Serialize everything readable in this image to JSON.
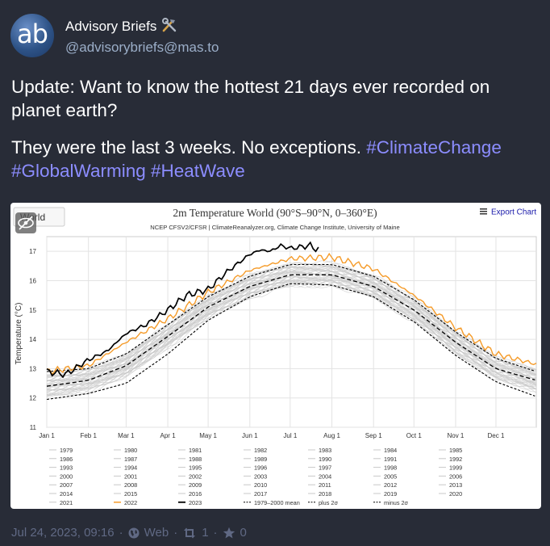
{
  "post": {
    "author": {
      "display_name": "Advisory Briefs",
      "handle": "@advisorybriefs@mas.to",
      "avatar_text": "ab",
      "name_icon": "hammer-and-wrench-icon"
    },
    "text_line1": "Update: Want to know the hottest 21 days ever recorded on planet earth?",
    "text_line2_plain": "They were the last 3 weeks. No exceptions.",
    "hashtags": [
      "#ClimateChange",
      "#GlobalWarming",
      "#HeatWave"
    ],
    "footer": {
      "timestamp": "Jul 24, 2023, 09:16",
      "sep1": "·",
      "visibility_icon": "globe-icon",
      "app": "Web",
      "sep2": "·",
      "boost_icon": "boost-icon",
      "boost_count": "1",
      "sep3": "·",
      "favourite_icon": "star-icon",
      "favourite_count": "0"
    }
  },
  "colors": {
    "background": "#282c37",
    "hashtag": "#8c8dff",
    "handle": "#9baec8",
    "footer": "#606984",
    "series_2022": "#f59b29",
    "series_2023": "#000000",
    "series_background": "#c8c8c8"
  },
  "chart_data": {
    "type": "line",
    "title": "2m Temperature World (90°S–90°N, 0–360°E)",
    "subtitle": "NCEP CFSV2/CFSR | ClimateReanalyzer.org, Climate Change Institute, University of Maine",
    "region_button": "World",
    "export_label": "Export Chart",
    "ylabel": "Temperature (°C)",
    "ylim": [
      11,
      17.5
    ],
    "yticks": [
      "11",
      "12",
      "13",
      "14",
      "15",
      "16",
      "17"
    ],
    "x_ticks": [
      "Jan 1",
      "Feb 1",
      "Mar 1",
      "Apr 1",
      "May 1",
      "Jun 1",
      "Jul 1",
      "Aug 1",
      "Sep 1",
      "Oct 1",
      "Nov 1",
      "Dec 1"
    ],
    "grid": true,
    "legend_position": "bottom",
    "background_year_legend": [
      "1979",
      "1980",
      "1981",
      "1982",
      "1983",
      "1984",
      "1985",
      "1986",
      "1987",
      "1988",
      "1989",
      "1990",
      "1991",
      "1992",
      "1993",
      "1994",
      "1995",
      "1996",
      "1997",
      "1998",
      "1999",
      "2000",
      "2001",
      "2002",
      "2003",
      "2004",
      "2005",
      "2006",
      "2007",
      "2008",
      "2009",
      "2010",
      "2011",
      "2012",
      "2013",
      "2014",
      "2015",
      "2016",
      "2017",
      "2018",
      "2019",
      "2020",
      "2021"
    ],
    "highlighted_legend": [
      {
        "name": "2022",
        "style": "orange"
      },
      {
        "name": "2023",
        "style": "black-bold"
      },
      {
        "name": "1979–2000 mean",
        "style": "black-dashed"
      },
      {
        "name": "plus 2σ",
        "style": "black-dashed"
      },
      {
        "name": "minus 2σ",
        "style": "black-dashed"
      }
    ],
    "series": [
      {
        "name": "1979–2000 mean",
        "x_day": [
          1,
          32,
          60,
          91,
          121,
          152,
          182,
          213,
          244,
          274,
          305,
          335,
          365
        ],
        "values": [
          12.4,
          12.6,
          13.1,
          14.1,
          15.1,
          15.8,
          16.2,
          16.2,
          15.8,
          15.0,
          13.9,
          13.0,
          12.6
        ]
      },
      {
        "name": "plus 2σ",
        "x_day": [
          1,
          32,
          60,
          91,
          121,
          152,
          182,
          213,
          244,
          274,
          305,
          335,
          365
        ],
        "values": [
          12.9,
          13.0,
          13.5,
          14.5,
          15.45,
          16.15,
          16.55,
          16.55,
          16.15,
          15.35,
          14.25,
          13.35,
          12.9
        ]
      },
      {
        "name": "minus 2σ",
        "x_day": [
          1,
          32,
          60,
          91,
          121,
          152,
          182,
          213,
          244,
          274,
          305,
          335,
          365
        ],
        "values": [
          11.95,
          12.15,
          12.5,
          13.5,
          14.65,
          15.45,
          15.9,
          15.85,
          15.45,
          14.6,
          13.45,
          12.55,
          12.05
        ]
      },
      {
        "name": "2022",
        "x_day": [
          1,
          32,
          60,
          91,
          121,
          152,
          182,
          213,
          244,
          274,
          305,
          335,
          365
        ],
        "values": [
          12.9,
          13.1,
          13.9,
          14.7,
          15.6,
          16.35,
          16.75,
          16.8,
          16.4,
          15.5,
          14.4,
          13.5,
          13.15
        ]
      },
      {
        "name": "2023",
        "x_day": [
          1,
          15,
          32,
          46,
          60,
          75,
          91,
          105,
          121,
          135,
          152,
          160,
          167,
          175,
          182,
          190,
          197,
          200,
          204
        ],
        "values": [
          12.9,
          12.8,
          13.3,
          13.6,
          14.2,
          14.5,
          15.0,
          15.5,
          15.7,
          16.3,
          16.9,
          17.05,
          17.0,
          17.2,
          17.1,
          17.15,
          17.2,
          17.1,
          17.05
        ]
      }
    ]
  }
}
